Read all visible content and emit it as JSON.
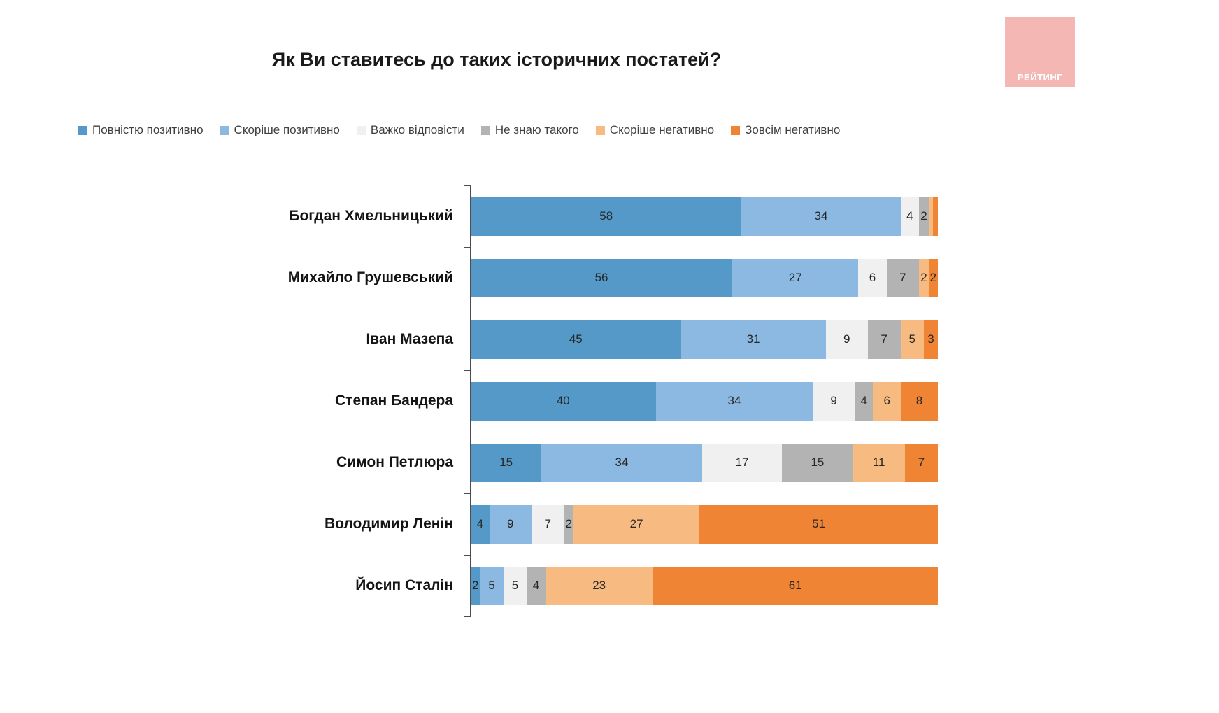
{
  "title": "Як Ви ставитесь до таких історичних постатей?",
  "logo": {
    "text": "РЕЙТИНГ",
    "bg_color": "#f4b7b4",
    "text_color": "#ffffff"
  },
  "chart_data": {
    "type": "bar",
    "orientation": "horizontal",
    "stacked": true,
    "unit": "percent",
    "legend_position": "top",
    "value_labels": "inside",
    "min_value_for_label": 2,
    "categories": [
      "Богдан Хмельницький",
      "Михайло Грушевський",
      "Іван Мазепа",
      "Степан Бандера",
      "Симон Петлюра",
      "Володимир Ленін",
      "Йосип Сталін"
    ],
    "series": [
      {
        "name": "Повністю позитивно",
        "color": "#5499c7",
        "values": [
          58,
          56,
          45,
          40,
          15,
          4,
          2
        ]
      },
      {
        "name": "Скоріше позитивно",
        "color": "#8cb9e2",
        "values": [
          34,
          27,
          31,
          34,
          34,
          9,
          5
        ]
      },
      {
        "name": "Важко відповісти",
        "color": "#f0f0f0",
        "values": [
          4,
          6,
          9,
          9,
          17,
          7,
          5
        ]
      },
      {
        "name": "Не знаю такого",
        "color": "#b3b3b3",
        "values": [
          2,
          7,
          7,
          4,
          15,
          2,
          4
        ]
      },
      {
        "name": "Скоріше негативно",
        "color": "#f7bb82",
        "values": [
          1,
          2,
          5,
          6,
          11,
          27,
          23
        ]
      },
      {
        "name": "Зовсім негативно",
        "color": "#ee8434",
        "values": [
          1,
          2,
          3,
          8,
          7,
          51,
          61
        ]
      }
    ]
  }
}
